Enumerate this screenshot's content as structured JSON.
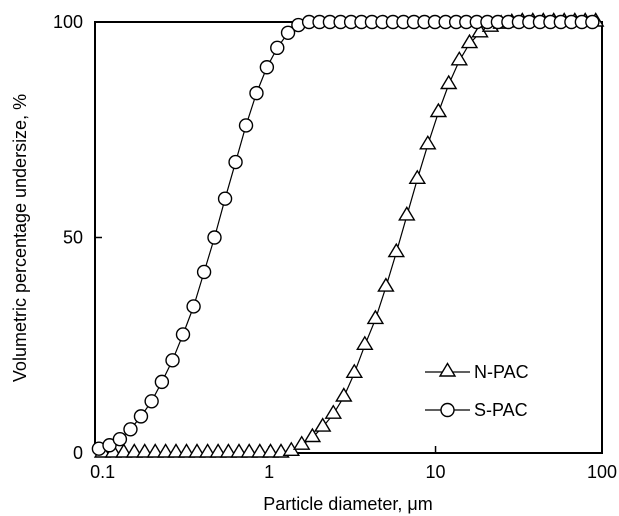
{
  "chart_data": {
    "type": "line",
    "xlabel": "Particle diameter, μm",
    "ylabel": "Volumetric percentage undersize, %",
    "x_scale": "log",
    "xlim": [
      0.09,
      100
    ],
    "ylim": [
      0,
      100
    ],
    "x_ticks": [
      0.1,
      1,
      10,
      100
    ],
    "x_tick_labels": [
      "0.1",
      "1",
      "10",
      "100"
    ],
    "y_ticks": [
      0,
      50,
      100
    ],
    "y_tick_labels": [
      "0",
      "50",
      "100"
    ],
    "grid": false,
    "legend_position": "bottom-right",
    "series": [
      {
        "name": "N-PAC",
        "marker": "triangle",
        "points": [
          [
            0.1,
            0
          ],
          [
            0.116,
            0
          ],
          [
            0.134,
            0
          ],
          [
            0.155,
            0
          ],
          [
            0.179,
            0
          ],
          [
            0.207,
            0
          ],
          [
            0.239,
            0
          ],
          [
            0.276,
            0
          ],
          [
            0.319,
            0
          ],
          [
            0.369,
            0
          ],
          [
            0.427,
            0
          ],
          [
            0.494,
            0
          ],
          [
            0.57,
            0
          ],
          [
            0.66,
            0
          ],
          [
            0.76,
            0
          ],
          [
            0.88,
            0
          ],
          [
            1.02,
            0
          ],
          [
            1.18,
            0
          ],
          [
            1.36,
            0.4
          ],
          [
            1.57,
            1.8
          ],
          [
            1.82,
            3.6
          ],
          [
            2.1,
            6.0
          ],
          [
            2.43,
            9.0
          ],
          [
            2.81,
            13.0
          ],
          [
            3.25,
            18.5
          ],
          [
            3.76,
            25.0
          ],
          [
            4.35,
            31.0
          ],
          [
            5.03,
            38.5
          ],
          [
            5.81,
            46.5
          ],
          [
            6.72,
            55.0
          ],
          [
            7.77,
            63.5
          ],
          [
            8.98,
            71.5
          ],
          [
            10.4,
            79.0
          ],
          [
            12.0,
            85.5
          ],
          [
            13.9,
            91.0
          ],
          [
            16.0,
            95.0
          ],
          [
            18.5,
            97.5
          ],
          [
            21.4,
            98.8
          ],
          [
            24.8,
            99.5
          ],
          [
            28.7,
            99.8
          ],
          [
            33.2,
            100
          ],
          [
            38.4,
            100
          ],
          [
            44.4,
            100
          ],
          [
            51.3,
            100
          ],
          [
            59.3,
            100
          ],
          [
            68.6,
            100
          ],
          [
            79.3,
            100
          ],
          [
            91.7,
            100
          ]
        ]
      },
      {
        "name": "S-PAC",
        "marker": "circle",
        "points": [
          [
            0.095,
            1.0
          ],
          [
            0.11,
            1.8
          ],
          [
            0.127,
            3.2
          ],
          [
            0.147,
            5.5
          ],
          [
            0.17,
            8.5
          ],
          [
            0.197,
            12.0
          ],
          [
            0.227,
            16.5
          ],
          [
            0.263,
            21.5
          ],
          [
            0.304,
            27.5
          ],
          [
            0.352,
            34.0
          ],
          [
            0.407,
            42.0
          ],
          [
            0.47,
            50.0
          ],
          [
            0.544,
            59.0
          ],
          [
            0.629,
            67.5
          ],
          [
            0.727,
            76.0
          ],
          [
            0.84,
            83.5
          ],
          [
            0.97,
            89.5
          ],
          [
            1.12,
            94.0
          ],
          [
            1.3,
            97.5
          ],
          [
            1.5,
            99.3
          ],
          [
            1.74,
            100
          ],
          [
            2.01,
            100
          ],
          [
            2.32,
            100
          ],
          [
            2.69,
            100
          ],
          [
            3.11,
            100
          ],
          [
            3.59,
            100
          ],
          [
            4.15,
            100
          ],
          [
            4.8,
            100
          ],
          [
            5.55,
            100
          ],
          [
            6.42,
            100
          ],
          [
            7.42,
            100
          ],
          [
            8.58,
            100
          ],
          [
            9.92,
            100
          ],
          [
            11.5,
            100
          ],
          [
            13.3,
            100
          ],
          [
            15.3,
            100
          ],
          [
            17.7,
            100
          ],
          [
            20.5,
            100
          ],
          [
            23.7,
            100
          ],
          [
            27.4,
            100
          ],
          [
            31.7,
            100
          ],
          [
            36.6,
            100
          ],
          [
            42.4,
            100
          ],
          [
            49.0,
            100
          ],
          [
            56.6,
            100
          ],
          [
            65.5,
            100
          ],
          [
            75.7,
            100
          ],
          [
            87.5,
            100
          ]
        ]
      }
    ]
  }
}
